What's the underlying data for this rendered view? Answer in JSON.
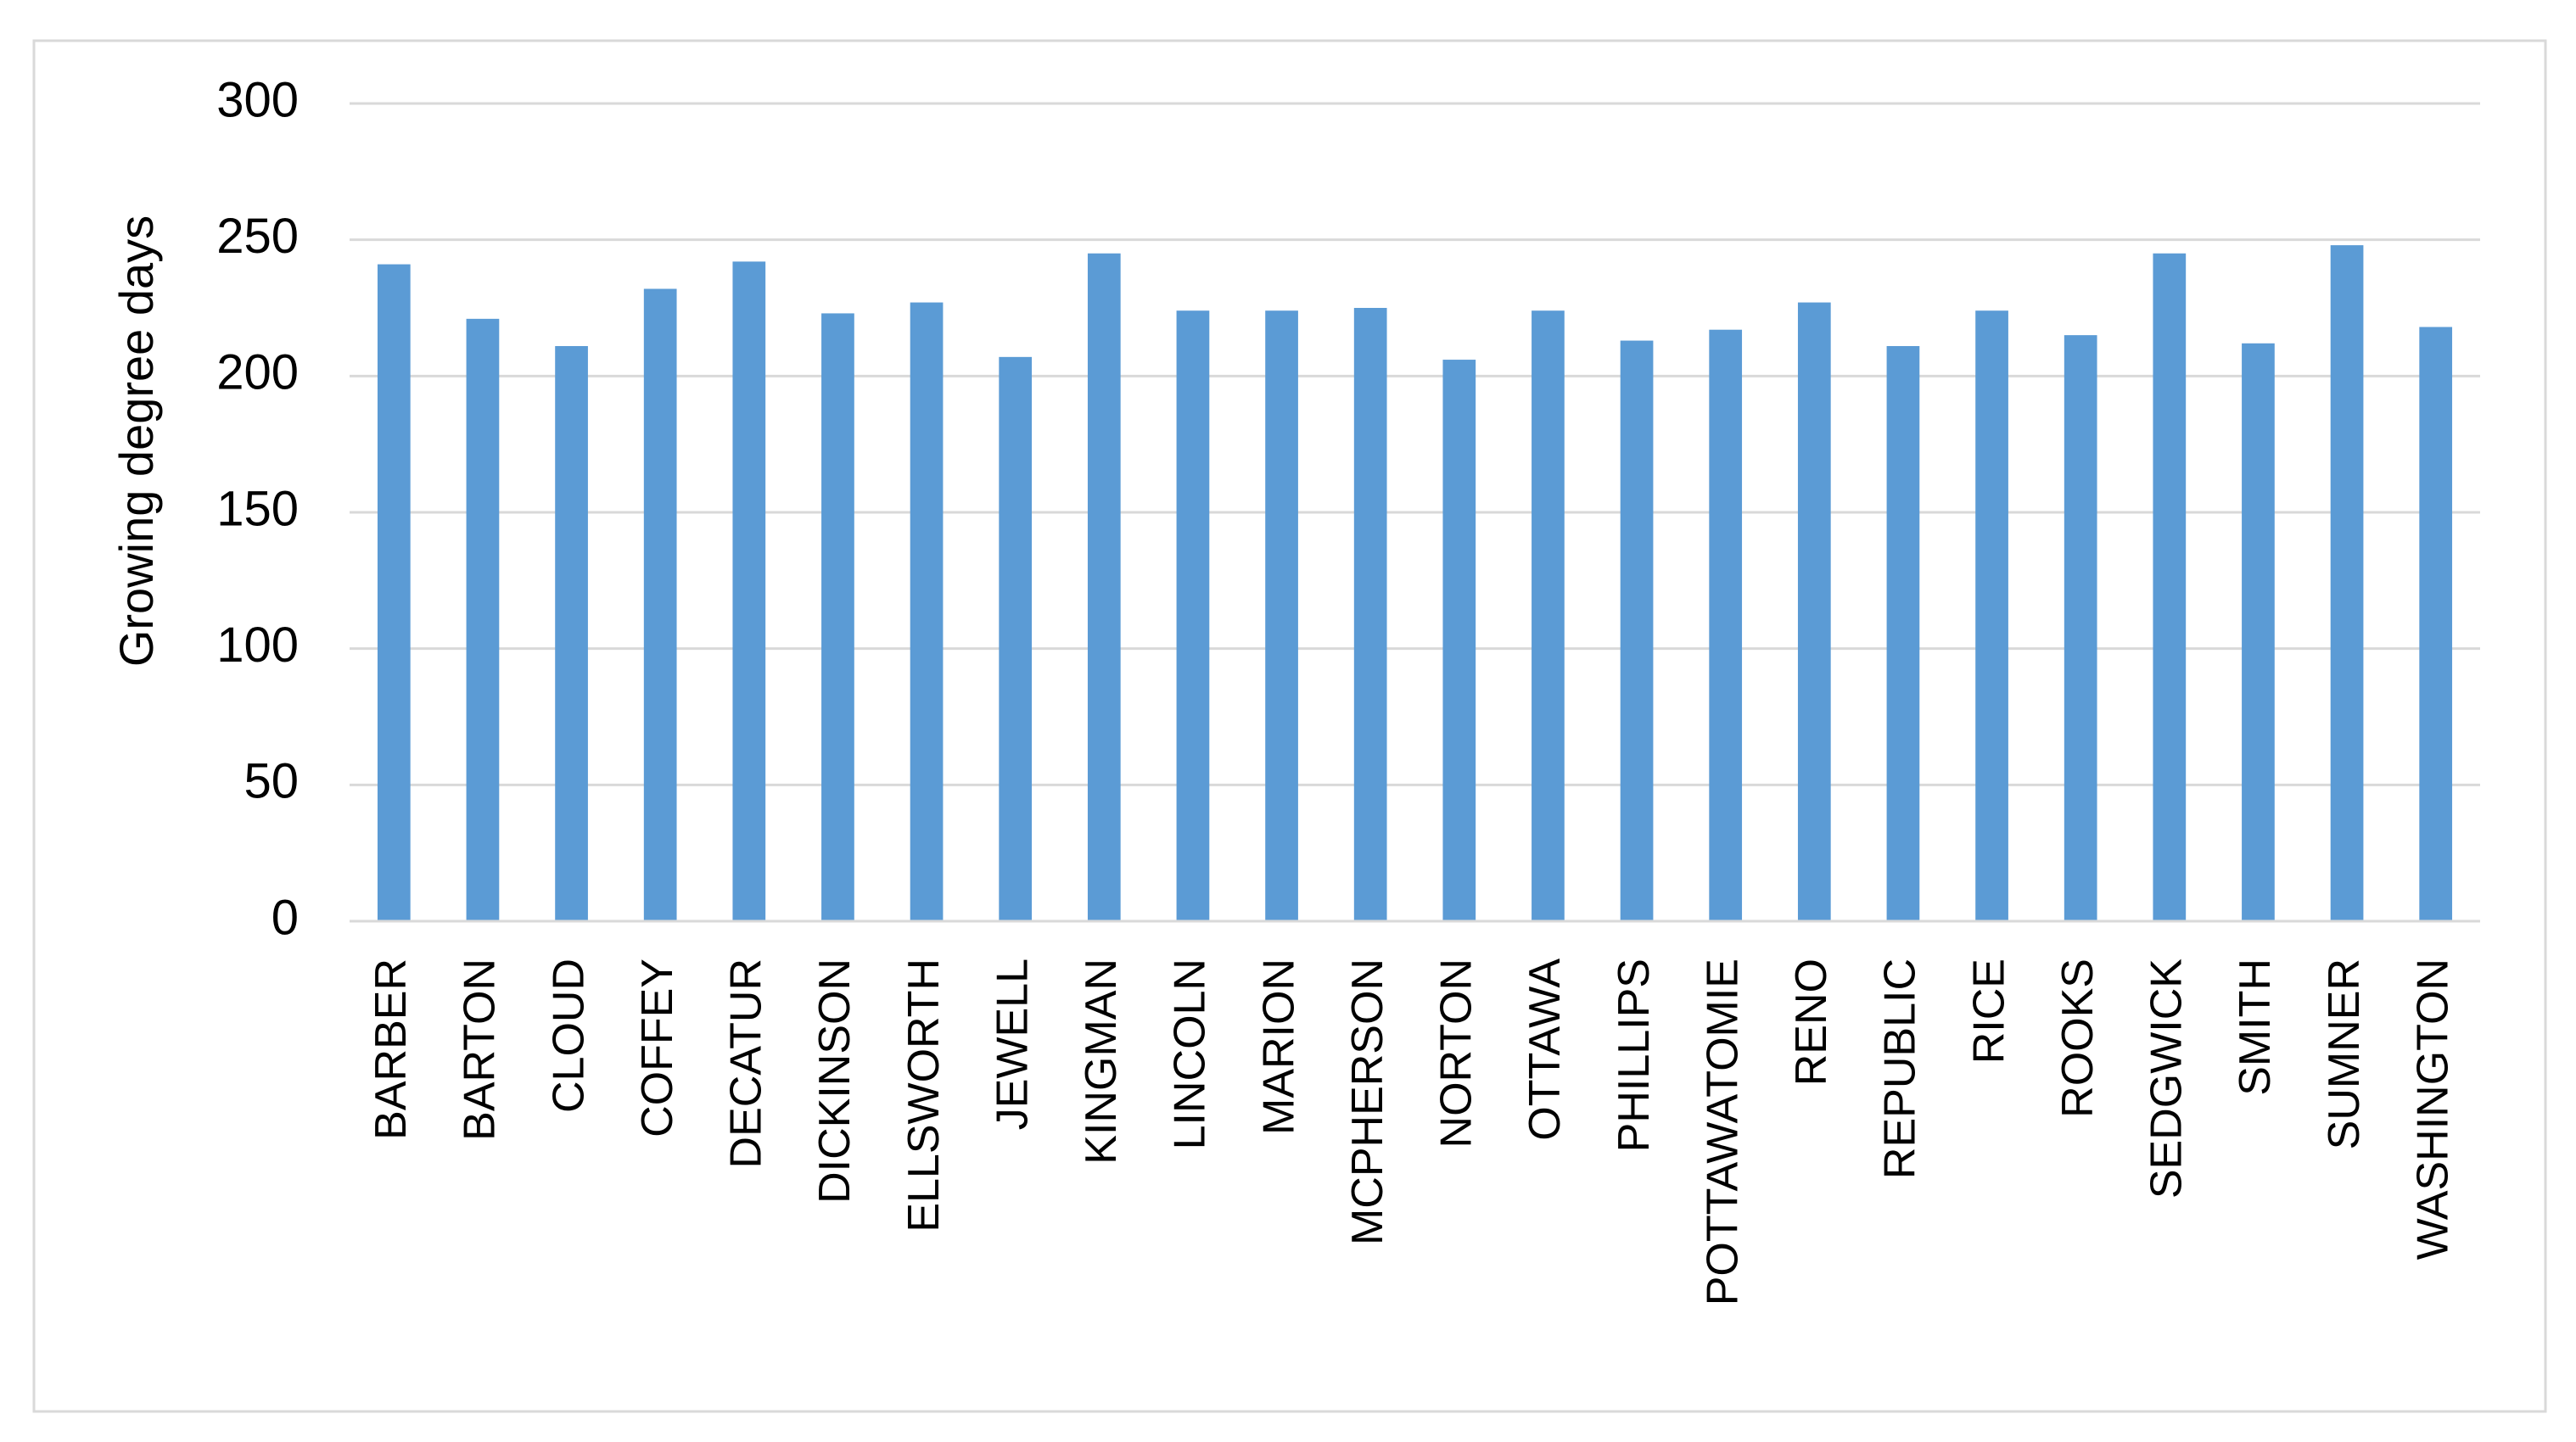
{
  "chart_data": {
    "type": "bar",
    "y_label": "Growing degree days",
    "categories": [
      "BARBER",
      "BARTON",
      "CLOUD",
      "COFFEY",
      "DECATUR",
      "DICKINSON",
      "ELLSWORTH",
      "JEWELL",
      "KINGMAN",
      "LINCOLN",
      "MARION",
      "MCPHERSON",
      "NORTON",
      "OTTAWA",
      "PHILLIPS",
      "POTTAWATOMIE",
      "RENO",
      "REPUBLIC",
      "RICE",
      "ROOKS",
      "SEDGWICK",
      "SMITH",
      "SUMNER",
      "WASHINGTON"
    ],
    "values": [
      241,
      221,
      211,
      232,
      242,
      223,
      227,
      207,
      245,
      224,
      224,
      225,
      206,
      224,
      213,
      217,
      227,
      211,
      224,
      215,
      245,
      212,
      248,
      218
    ],
    "color": "#5b9bd5",
    "ylim": [
      0,
      300
    ],
    "yticks": [
      0,
      50,
      100,
      150,
      200,
      250,
      300
    ],
    "grid": true
  }
}
